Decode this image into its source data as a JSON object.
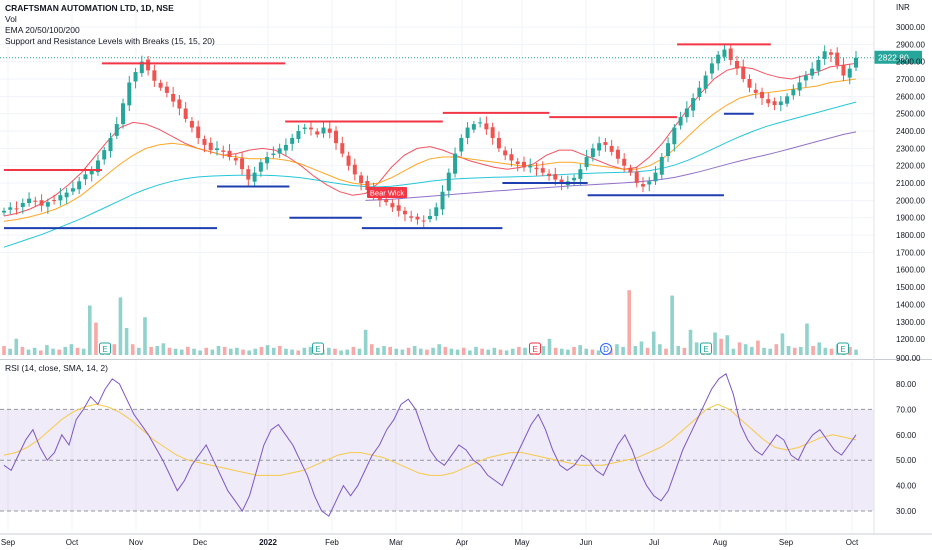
{
  "header": {
    "title": "CRAFTSMAN AUTOMATION LTD, 1D, NSE",
    "indicators": [
      "Vol",
      "EMA 20/50/100/200",
      "Support and Resistance Levels with Breaks (15, 15, 20)"
    ]
  },
  "rsi_panel": {
    "title": "RSI (14, close, SMA, 14, 2)"
  },
  "chart_data": [
    {
      "type": "candlestick",
      "currency_label": "INR",
      "last_price": "2822.80",
      "y_ticks": [
        "3000.00",
        "2900.00",
        "2800.00",
        "2700.00",
        "2600.00",
        "2500.00",
        "2400.00",
        "2300.00",
        "2200.00",
        "2100.00",
        "2000.00",
        "1900.00",
        "1800.00",
        "1700.00",
        "1600.00",
        "1500.00",
        "1400.00",
        "1300.00",
        "1200.00",
        "900.00"
      ],
      "x_ticks": [
        "Sep",
        "Oct",
        "Nov",
        "Dec",
        "2022",
        "Feb",
        "Mar",
        "Apr",
        "May",
        "Jun",
        "Jul",
        "Aug",
        "Sep",
        "Oct"
      ],
      "annotation": "Bear Wick",
      "close_series": [
        1940,
        1960,
        1950,
        1985,
        2010,
        1995,
        1970,
        1990,
        2000,
        2030,
        2045,
        2070,
        2110,
        2150,
        2175,
        2230,
        2290,
        2360,
        2440,
        2560,
        2680,
        2740,
        2800,
        2750,
        2690,
        2650,
        2620,
        2570,
        2530,
        2470,
        2420,
        2360,
        2320,
        2290,
        2300,
        2280,
        2250,
        2230,
        2180,
        2120,
        2160,
        2220,
        2250,
        2270,
        2300,
        2320,
        2360,
        2400,
        2420,
        2410,
        2380,
        2420,
        2390,
        2330,
        2270,
        2200,
        2150,
        2100,
        2060,
        2030,
        2000,
        1990,
        1960,
        1940,
        1920,
        1900,
        1890,
        1880,
        1910,
        1960,
        2050,
        2160,
        2270,
        2360,
        2420,
        2440,
        2450,
        2410,
        2360,
        2300,
        2260,
        2230,
        2210,
        2190,
        2200,
        2180,
        2160,
        2140,
        2120,
        2100,
        2110,
        2130,
        2180,
        2250,
        2300,
        2330,
        2320,
        2280,
        2240,
        2200,
        2160,
        2100,
        2080,
        2110,
        2160,
        2250,
        2330,
        2420,
        2480,
        2530,
        2590,
        2650,
        2720,
        2790,
        2840,
        2870,
        2810,
        2760,
        2700,
        2650,
        2620,
        2590,
        2560,
        2550,
        2570,
        2600,
        2640,
        2680,
        2720,
        2760,
        2810,
        2860,
        2840,
        2780,
        2720,
        2760,
        2822.8
      ],
      "ema_series": [
        {
          "name": "EMA 20",
          "color": "#f23645",
          "values": [
            1910,
            1925,
            1950,
            1985,
            2030,
            2090,
            2160,
            2250,
            2340,
            2420,
            2450,
            2440,
            2410,
            2370,
            2330,
            2300,
            2280,
            2260,
            2270,
            2290,
            2300,
            2290,
            2250,
            2200,
            2140,
            2090,
            2050,
            2030,
            2040,
            2100,
            2190,
            2260,
            2300,
            2310,
            2290,
            2260,
            2230,
            2210,
            2190,
            2180,
            2190,
            2210,
            2260,
            2290,
            2290,
            2260,
            2230,
            2200,
            2180,
            2190,
            2250,
            2330,
            2430,
            2530,
            2620,
            2700,
            2750,
            2770,
            2760,
            2730,
            2710,
            2700,
            2720,
            2740,
            2770,
            2780,
            2790
          ]
        },
        {
          "name": "EMA 50",
          "color": "#ff9800",
          "values": [
            1880,
            1890,
            1905,
            1925,
            1950,
            1985,
            2030,
            2090,
            2150,
            2210,
            2260,
            2300,
            2320,
            2330,
            2320,
            2300,
            2280,
            2260,
            2250,
            2240,
            2240,
            2240,
            2230,
            2210,
            2180,
            2150,
            2120,
            2100,
            2090,
            2100,
            2130,
            2170,
            2210,
            2240,
            2250,
            2250,
            2240,
            2230,
            2220,
            2210,
            2200,
            2200,
            2210,
            2220,
            2220,
            2210,
            2200,
            2190,
            2180,
            2180,
            2200,
            2240,
            2300,
            2370,
            2440,
            2500,
            2550,
            2590,
            2610,
            2620,
            2630,
            2640,
            2650,
            2660,
            2680,
            2690,
            2700
          ]
        },
        {
          "name": "EMA 100",
          "color": "#00bcd4",
          "values": [
            1730,
            1755,
            1780,
            1805,
            1835,
            1865,
            1895,
            1930,
            1965,
            2000,
            2035,
            2065,
            2090,
            2110,
            2125,
            2135,
            2140,
            2143,
            2145,
            2145,
            2145,
            2143,
            2138,
            2130,
            2120,
            2108,
            2096,
            2086,
            2080,
            2078,
            2082,
            2090,
            2100,
            2110,
            2118,
            2124,
            2128,
            2131,
            2133,
            2135,
            2137,
            2139,
            2143,
            2148,
            2152,
            2155,
            2158,
            2160,
            2162,
            2165,
            2172,
            2185,
            2205,
            2232,
            2265,
            2300,
            2335,
            2368,
            2398,
            2425,
            2447,
            2467,
            2487,
            2507,
            2527,
            2547,
            2567
          ]
        },
        {
          "name": "EMA 200",
          "color": "#7e57c2",
          "values": [
            null,
            null,
            null,
            null,
            null,
            null,
            null,
            null,
            null,
            null,
            null,
            null,
            null,
            null,
            null,
            null,
            null,
            null,
            null,
            null,
            null,
            null,
            null,
            null,
            null,
            null,
            null,
            null,
            2000,
            2003,
            2007,
            2012,
            2018,
            2024,
            2030,
            2036,
            2042,
            2048,
            2054,
            2059,
            2064,
            2069,
            2074,
            2079,
            2084,
            2088,
            2092,
            2097,
            2101,
            2106,
            2113,
            2122,
            2134,
            2150,
            2168,
            2188,
            2208,
            2227,
            2245,
            2262,
            2280,
            2300,
            2320,
            2340,
            2360,
            2380,
            2395
          ]
        }
      ],
      "resistance_levels": [
        {
          "from": 0,
          "to": 0.115,
          "value": 2175
        },
        {
          "from": 0.115,
          "to": 0.33,
          "value": 2790
        },
        {
          "from": 0.33,
          "to": 0.515,
          "value": 2455
        },
        {
          "from": 0.515,
          "to": 0.64,
          "value": 2505
        },
        {
          "from": 0.64,
          "to": 0.79,
          "value": 2480
        },
        {
          "from": 0.79,
          "to": 0.9,
          "value": 2900
        }
      ],
      "support_levels": [
        {
          "from": 0,
          "to": 0.25,
          "value": 1840
        },
        {
          "from": 0.25,
          "to": 0.335,
          "value": 2080
        },
        {
          "from": 0.335,
          "to": 0.42,
          "value": 1900
        },
        {
          "from": 0.42,
          "to": 0.585,
          "value": 1840
        },
        {
          "from": 0.585,
          "to": 0.685,
          "value": 2100
        },
        {
          "from": 0.685,
          "to": 0.845,
          "value": 2030
        },
        {
          "from": 0.845,
          "to": 0.88,
          "value": 2500
        }
      ],
      "volume_series": [
        0.1,
        0.07,
        0.18,
        0.09,
        0.06,
        0.08,
        0.05,
        0.11,
        0.07,
        0.06,
        0.09,
        0.12,
        0.08,
        0.07,
        0.55,
        0.36,
        0.08,
        0.1,
        0.12,
        0.64,
        0.3,
        0.12,
        0.08,
        0.42,
        0.09,
        0.1,
        0.13,
        0.08,
        0.07,
        0.06,
        0.09,
        0.07,
        0.05,
        0.08,
        0.06,
        0.1,
        0.09,
        0.07,
        0.08,
        0.06,
        0.05,
        0.07,
        0.09,
        0.11,
        0.08,
        0.1,
        0.07,
        0.06,
        0.05,
        0.08,
        0.09,
        0.07,
        0.06,
        0.08,
        0.07,
        0.05,
        0.06,
        0.09,
        0.07,
        0.28,
        0.12,
        0.08,
        0.1,
        0.09,
        0.07,
        0.06,
        0.08,
        0.1,
        0.07,
        0.06,
        0.08,
        0.12,
        0.09,
        0.07,
        0.06,
        0.08,
        0.05,
        0.09,
        0.07,
        0.06,
        0.08,
        0.06,
        0.05,
        0.07,
        0.09,
        0.08,
        0.06,
        0.07,
        0.1,
        0.18,
        0.08,
        0.07,
        0.06,
        0.09,
        0.11,
        0.07,
        0.06,
        0.05,
        0.08,
        0.07,
        0.12,
        0.09,
        0.72,
        0.1,
        0.15,
        0.08,
        0.26,
        0.12,
        0.07,
        0.66,
        0.1,
        0.08,
        0.28,
        0.14,
        0.11,
        0.09,
        0.25,
        0.18,
        0.22,
        0.07,
        0.14,
        0.12,
        0.09,
        0.16,
        0.08,
        0.07,
        0.12,
        0.24,
        0.1,
        0.08,
        0.09,
        0.35,
        0.1,
        0.14,
        0.08,
        0.07,
        0.12,
        0.1,
        0.09,
        0.06
      ],
      "event_markers": [
        "E",
        "E",
        "E",
        "D",
        "E",
        "E"
      ]
    },
    {
      "type": "line",
      "y_ticks": [
        "80.00",
        "70.00",
        "60.00",
        "50.00",
        "40.00",
        "30.00"
      ],
      "bands": [
        30,
        50,
        70
      ],
      "rsi_values": [
        48,
        46,
        52,
        58,
        62,
        55,
        50,
        53,
        60,
        56,
        66,
        70,
        75,
        72,
        78,
        82,
        80,
        74,
        68,
        64,
        60,
        55,
        50,
        44,
        38,
        42,
        48,
        52,
        56,
        50,
        44,
        38,
        34,
        30,
        36,
        46,
        56,
        62,
        64,
        60,
        56,
        50,
        44,
        36,
        30,
        28,
        34,
        40,
        36,
        40,
        46,
        52,
        56,
        62,
        66,
        72,
        74,
        70,
        62,
        54,
        50,
        48,
        52,
        56,
        54,
        50,
        48,
        44,
        42,
        40,
        46,
        52,
        58,
        64,
        68,
        62,
        54,
        48,
        46,
        48,
        52,
        50,
        46,
        44,
        50,
        56,
        60,
        54,
        46,
        40,
        36,
        34,
        38,
        46,
        54,
        60,
        66,
        72,
        78,
        82,
        84,
        76,
        64,
        58,
        54,
        52,
        56,
        60,
        58,
        52,
        50,
        56,
        60,
        62,
        58,
        54,
        52,
        56,
        60
      ],
      "rsi_sma_values": [
        52,
        53,
        55,
        58,
        62,
        66,
        69,
        71,
        72,
        71,
        69,
        66,
        62,
        58,
        55,
        52,
        50,
        49,
        48,
        47,
        46,
        45,
        44,
        44,
        44,
        45,
        46,
        48,
        50,
        52,
        53,
        53,
        52,
        51,
        49,
        47,
        45,
        44,
        44,
        45,
        47,
        49,
        51,
        52,
        53,
        53,
        52,
        51,
        50,
        49,
        48,
        48,
        48,
        49,
        50,
        51,
        53,
        55,
        58,
        62,
        66,
        70,
        72,
        70,
        66,
        62,
        58,
        55,
        54,
        55,
        57,
        59,
        60,
        59,
        58
      ]
    }
  ]
}
